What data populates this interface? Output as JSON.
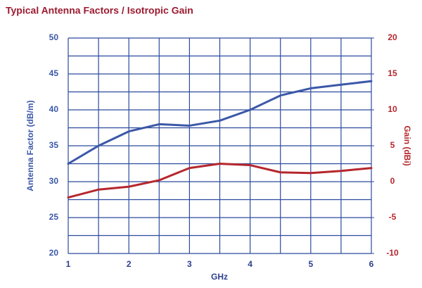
{
  "chart_data": {
    "type": "line",
    "title": "Typical Antenna Factors / Isotropic Gain",
    "x_label": "GHz",
    "y_label": "Antenna Factor (dB/m)",
    "y2_label": "Gain (dBi)",
    "x": [
      1,
      1.5,
      2,
      2.5,
      3,
      3.5,
      4,
      4.5,
      5,
      5.5,
      6
    ],
    "series": [
      {
        "name": "Antenna Factor",
        "color": "#3b58a8",
        "values": [
          32.5,
          35,
          37,
          38,
          37.8,
          38.5,
          40,
          42,
          43,
          43.5,
          44
        ]
      },
      {
        "name": "Gain",
        "color": "#b5272d",
        "axis": "y2",
        "values": [
          -2.2,
          -1.1,
          -0.7,
          0.2,
          1.9,
          2.5,
          2.3,
          1.3,
          1.2,
          1.5,
          1.9
        ]
      }
    ],
    "xlim": [
      1,
      6
    ],
    "xticks": [
      1,
      2,
      3,
      4,
      5,
      6
    ],
    "ylim": [
      20,
      50
    ],
    "yticks": [
      20,
      25,
      30,
      35,
      40,
      45,
      50
    ],
    "y2lim": [
      -10,
      20
    ],
    "y2ticks": [
      -10,
      -5,
      0,
      5,
      10,
      15,
      20
    ],
    "grid": true
  }
}
